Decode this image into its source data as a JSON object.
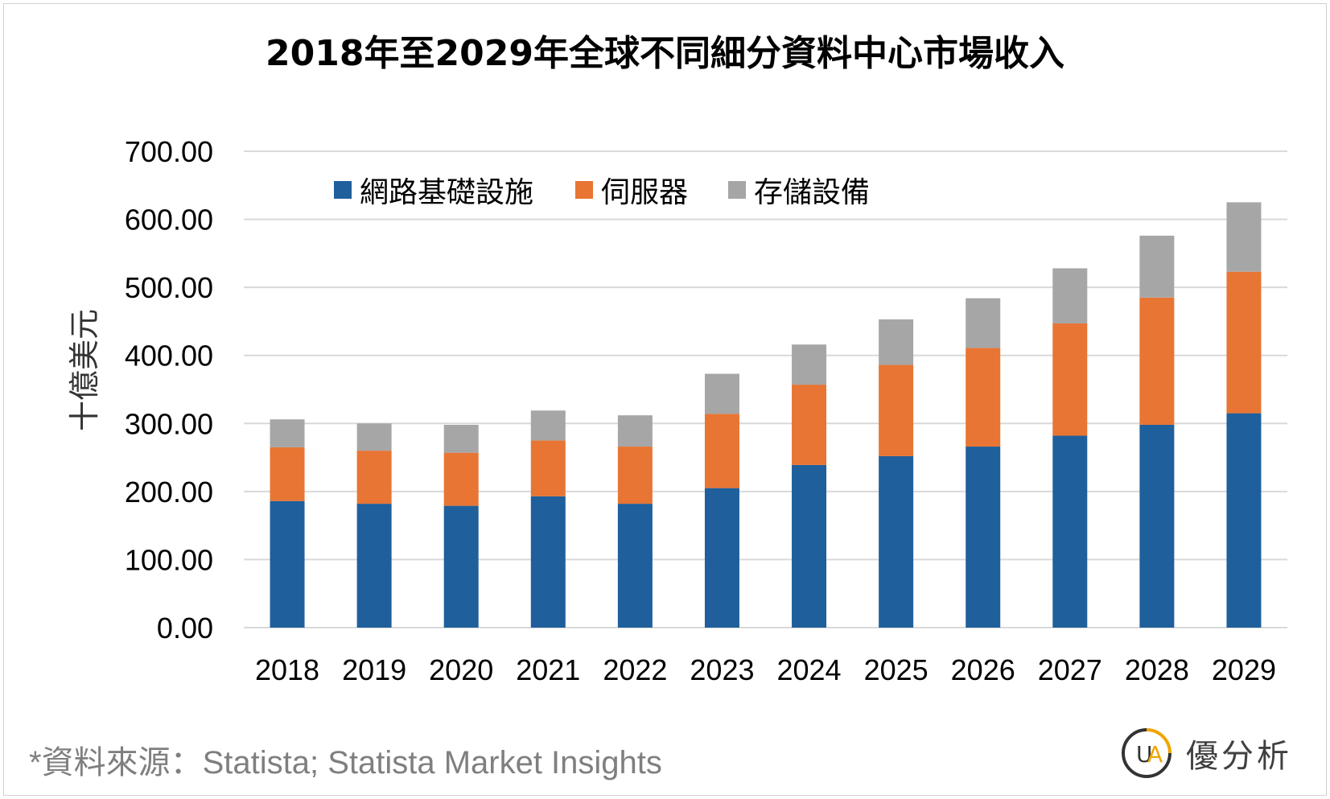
{
  "title": "2018年至2029年全球不同細分資料中心市場收入",
  "source": "*資料來源：Statista; Statista Market Insights",
  "logo": {
    "mark": "UA",
    "text": "優分析"
  },
  "chart_data": {
    "type": "bar",
    "stacked": true,
    "categories": [
      "2018",
      "2019",
      "2020",
      "2021",
      "2022",
      "2023",
      "2024",
      "2025",
      "2026",
      "2027",
      "2028",
      "2029"
    ],
    "series": [
      {
        "name": "網路基礎設施",
        "color": "#1f5f9c",
        "values": [
          186,
          182,
          179,
          193,
          182,
          205,
          239,
          252,
          266,
          282,
          298,
          315
        ]
      },
      {
        "name": "伺服器",
        "color": "#e87533",
        "values": [
          79,
          78,
          78,
          82,
          84,
          109,
          118,
          134,
          145,
          165,
          187,
          208
        ]
      },
      {
        "name": "存儲設備",
        "color": "#a6a6a6",
        "values": [
          41,
          40,
          41,
          44,
          46,
          59,
          59,
          67,
          73,
          81,
          91,
          102
        ]
      }
    ],
    "ylabel": "十億美元",
    "ylim": [
      0,
      700
    ],
    "yticks": [
      "0.00",
      "100.00",
      "200.00",
      "300.00",
      "400.00",
      "500.00",
      "600.00",
      "700.00"
    ],
    "grid": true,
    "legend": "top-left"
  }
}
